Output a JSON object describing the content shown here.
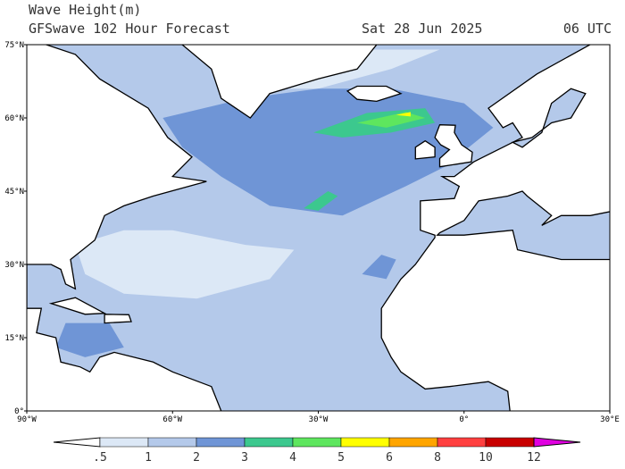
{
  "header": {
    "title": "Wave Height(m)",
    "subtitle": "GFSwave 102 Hour Forecast",
    "date": "Sat 28 Jun 2025",
    "time": "06 UTC"
  },
  "map": {
    "lat_labels": [
      "75°N",
      "60°N",
      "45°N",
      "30°N",
      "15°N",
      "0°"
    ],
    "lon_labels": [
      "90°W",
      "60°W",
      "30°W",
      "0°",
      "30°E"
    ]
  },
  "colorbar": {
    "levels": [
      {
        "value": 0.5,
        "label": ".5"
      },
      1,
      2,
      3,
      4,
      5,
      6,
      8,
      10,
      12
    ],
    "colors": [
      "#ffffff",
      "#dce8f6",
      "#b4c9ea",
      "#6f95d6",
      "#3cc88e",
      "#5ee65e",
      "#ffff00",
      "#ffa500",
      "#ff4040",
      "#c80000",
      "#e000e0"
    ]
  }
}
